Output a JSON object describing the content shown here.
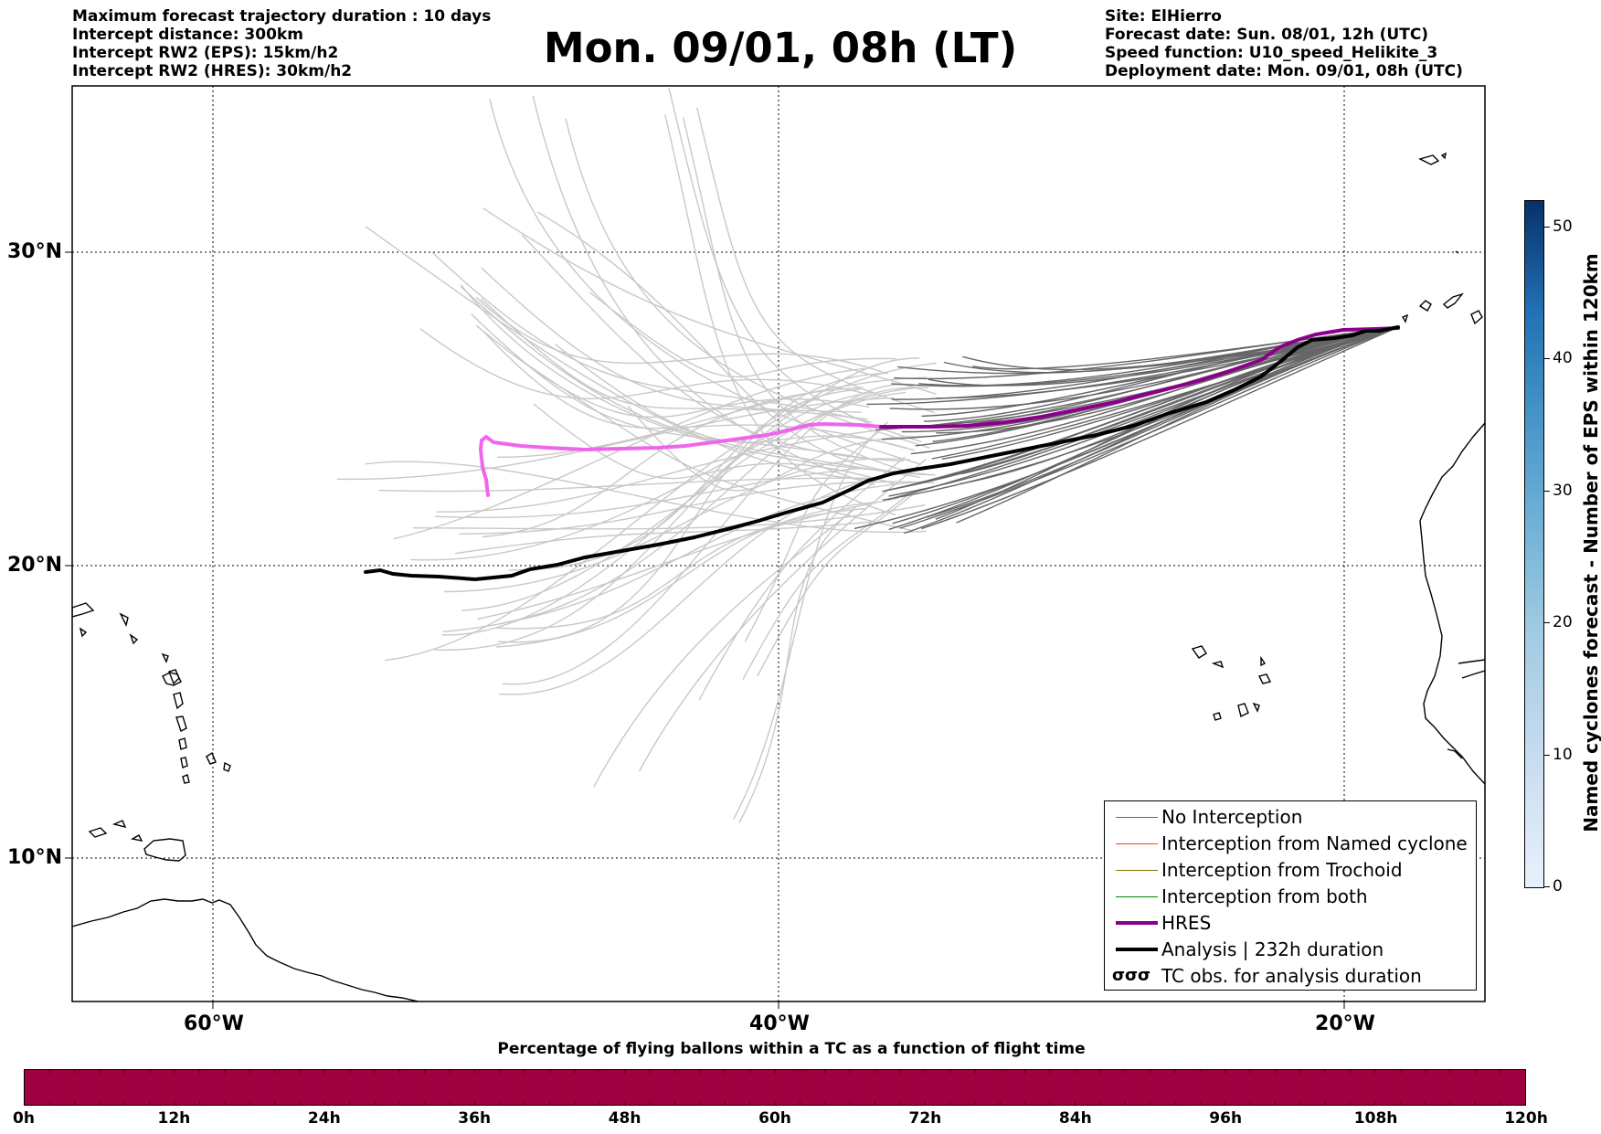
{
  "header": {
    "left_lines": [
      "Maximum forecast trajectory duration : 10 days",
      "Intercept distance: 300km",
      "Intercept RW2 (EPS):  15km/h2",
      "Intercept RW2 (HRES): 30km/h2"
    ],
    "title": "Mon. 09/01, 08h (LT)",
    "right_lines": [
      "Site: ElHierro",
      "Forecast date: Sun. 08/01, 12h (UTC)",
      "Speed function: U10_speed_Helikite_3",
      "Deployment date: Mon. 09/01, 08h (UTC)"
    ]
  },
  "map": {
    "lon_range": [
      -65,
      -15
    ],
    "lat_range": [
      5.5,
      34.8
    ],
    "lat_labels": [
      "30°N",
      "20°N",
      "10°N"
    ],
    "lon_labels": [
      "60°W",
      "40°W",
      "20°W"
    ],
    "colors": {
      "eps_forecast": "#c8c8c8",
      "no_interception": "#666666",
      "named_cyclone": "#ff4500",
      "trochoid": "#808000",
      "both": "#008000",
      "hres_after": "#8b008b",
      "hres_forecast": "#ee66ee",
      "analysis": "#000000",
      "coast": "#000000"
    }
  },
  "legend": {
    "items": [
      {
        "label": "No Interception",
        "color": "#666666",
        "width": 1.2,
        "kind": "line"
      },
      {
        "label": "Interception from Named cyclone",
        "color": "#ff4500",
        "width": 1.2,
        "kind": "line"
      },
      {
        "label": "Interception from Trochoid",
        "color": "#808000",
        "width": 1.2,
        "kind": "line"
      },
      {
        "label": "Interception from both",
        "color": "#008000",
        "width": 1.2,
        "kind": "line"
      },
      {
        "label": "HRES",
        "color": "#8b008b",
        "width": 4,
        "kind": "line"
      },
      {
        "label": "Analysis | 232h duration",
        "color": "#000000",
        "width": 4,
        "kind": "line"
      },
      {
        "label": "TC obs. for analysis duration",
        "glyph": "σσσ",
        "kind": "glyph"
      }
    ]
  },
  "colorbar_right": {
    "label": "Named cyclones forecast - Number of EPS within 120km",
    "ticks": [
      "0",
      "10",
      "20",
      "30",
      "40",
      "50"
    ],
    "range": [
      0,
      52
    ]
  },
  "colorbar_bottom": {
    "title": "Percentage of flying ballons within a TC as a function of flight time",
    "fill_color": "#9e0040",
    "ticks": [
      "0h",
      "12h",
      "24h",
      "36h",
      "48h",
      "60h",
      "72h",
      "84h",
      "96h",
      "108h",
      "120h"
    ]
  }
}
